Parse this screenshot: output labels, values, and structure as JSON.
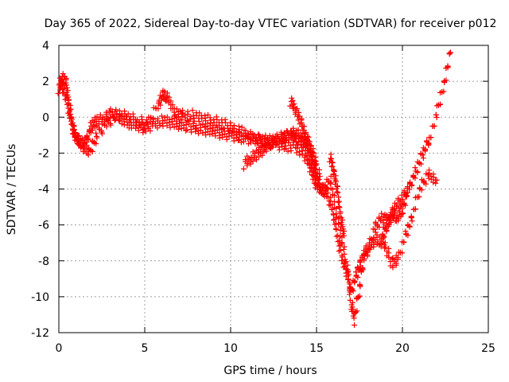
{
  "chart_data": {
    "type": "scatter",
    "title": "Day 365 of 2022, Sidereal Day-to-day VTEC variation (SDTVAR) for receiver p012",
    "xlabel": "GPS time / hours",
    "ylabel": "SDTVAR / TECUs",
    "xlim": [
      0,
      25
    ],
    "ylim": [
      -12,
      4
    ],
    "xticks": [
      0,
      5,
      10,
      15,
      20,
      25
    ],
    "yticks": [
      -12,
      -10,
      -8,
      -6,
      -4,
      -2,
      0,
      2,
      4
    ],
    "grid": true,
    "marker": "plus",
    "color": "#ff0000",
    "series": [
      {
        "x": [
          0.0,
          0.2,
          0.4,
          0.6,
          0.8,
          1.0,
          1.3,
          1.6,
          1.9,
          2.2,
          2.6,
          3.0,
          3.5,
          4.0,
          4.5,
          5.0,
          5.5,
          6.0,
          6.5,
          7.0,
          7.5,
          8.0,
          8.5,
          9.0,
          9.5,
          10.0,
          10.5,
          11.0,
          11.5,
          12.0,
          12.5,
          13.0,
          13.5,
          14.0,
          14.5,
          14.8,
          15.0,
          15.3,
          15.6,
          15.9,
          16.2,
          16.5,
          16.8,
          17.0,
          17.3,
          17.6,
          18.0,
          18.4,
          18.8,
          19.2,
          19.6,
          20.0,
          20.4,
          20.8,
          21.2,
          21.6,
          22.0,
          22.4,
          22.8
        ],
        "y": [
          1.6,
          2.2,
          2.0,
          0.8,
          -0.6,
          -1.2,
          -1.5,
          -1.3,
          -0.5,
          -0.2,
          -0.1,
          0.2,
          0.0,
          -0.3,
          -0.5,
          -0.6,
          -0.4,
          -0.2,
          -0.3,
          -0.4,
          -0.5,
          -0.6,
          -0.7,
          -0.8,
          -0.9,
          -1.0,
          -1.1,
          -1.2,
          -1.2,
          -1.3,
          -1.2,
          -1.1,
          -1.0,
          -1.3,
          -1.8,
          -2.5,
          -3.5,
          -4.0,
          -4.2,
          -5.0,
          -6.5,
          -8.0,
          -8.5,
          -9.8,
          -8.8,
          -8.0,
          -7.4,
          -6.2,
          -5.5,
          -5.8,
          -5.0,
          -4.5,
          -3.9,
          -3.0,
          -2.0,
          -1.2,
          0.2,
          1.8,
          3.6
        ]
      },
      {
        "x": [
          0.1,
          0.4,
          0.7,
          1.0,
          1.4,
          1.8,
          2.2,
          2.8,
          3.4,
          4.0,
          4.6,
          5.2,
          5.8,
          6.1,
          6.4,
          6.8,
          7.2,
          7.8,
          8.4,
          9.0,
          9.6,
          10.2,
          10.8,
          11.4,
          12.0,
          12.6,
          13.2,
          13.8,
          14.4,
          14.7,
          15.0,
          15.4,
          15.8,
          16.2,
          16.6,
          17.0,
          17.2,
          17.5,
          17.8,
          18.2,
          18.6,
          19.0,
          19.4,
          19.8,
          20.2,
          20.6,
          21.0,
          21.5,
          22.0
        ],
        "y": [
          1.8,
          1.2,
          -0.2,
          -1.0,
          -1.6,
          -2.0,
          -1.0,
          -0.4,
          0.2,
          0.0,
          -0.2,
          -0.4,
          0.8,
          1.3,
          0.9,
          0.2,
          0.1,
          0.1,
          -0.1,
          -0.2,
          -0.4,
          -0.6,
          -0.9,
          -1.2,
          -1.4,
          -1.5,
          -1.6,
          -1.7,
          -2.2,
          -3.0,
          -3.8,
          -4.1,
          -3.5,
          -5.5,
          -7.5,
          -10.2,
          -11.3,
          -9.5,
          -7.5,
          -7.0,
          -6.8,
          -7.2,
          -8.2,
          -7.8,
          -6.5,
          -5.5,
          -4.0,
          -3.2,
          -3.5
        ]
      },
      {
        "x": [
          10.8,
          11.2,
          11.6,
          12.0,
          12.4,
          12.8,
          13.2,
          13.6,
          14.0,
          14.4,
          14.8,
          15.2
        ],
        "y": [
          -2.6,
          -2.3,
          -2.0,
          -1.7,
          -1.4,
          -1.3,
          -1.1,
          -0.9,
          -1.0,
          -1.3,
          -2.5,
          -3.3
        ]
      },
      {
        "x": [
          13.5,
          13.8,
          14.1,
          14.4,
          14.7,
          15.0
        ],
        "y": [
          0.9,
          0.4,
          -0.3,
          -1.0,
          -1.8,
          -2.6
        ]
      },
      {
        "x": [
          15.8,
          16.0,
          16.2,
          16.4,
          16.6
        ],
        "y": [
          -2.2,
          -3.0,
          -4.0,
          -5.5,
          -6.6
        ]
      },
      {
        "x": [
          18.8,
          19.1,
          19.4,
          19.7,
          20.0,
          20.3
        ],
        "y": [
          -6.8,
          -6.0,
          -5.4,
          -5.6,
          -5.2,
          -4.2
        ]
      }
    ]
  }
}
